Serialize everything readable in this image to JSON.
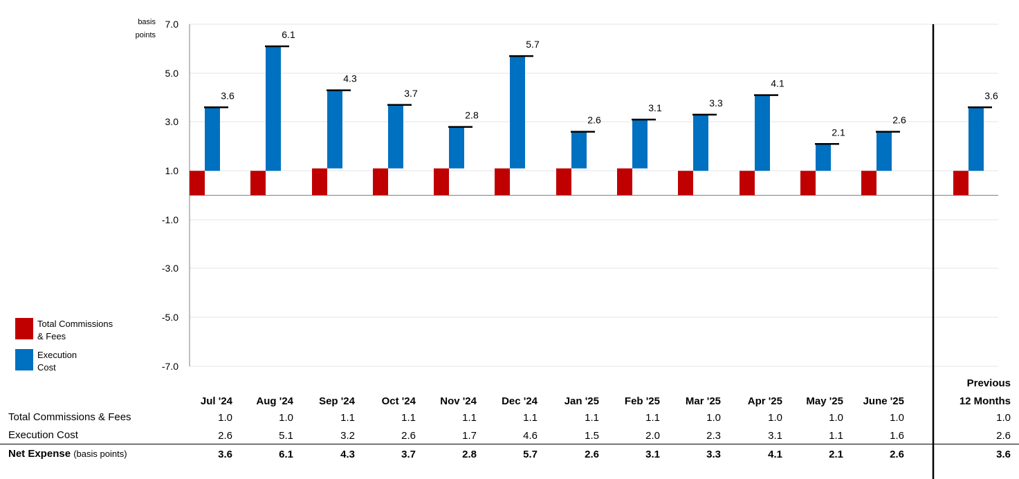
{
  "chart_data": {
    "type": "bar",
    "y_unit_label": "basis\npoints",
    "yticks": [
      "7.0",
      "5.0",
      "3.0",
      "1.0",
      "-1.0",
      "-3.0",
      "-5.0",
      "-7.0"
    ],
    "ylim": [
      -8,
      7
    ],
    "categories": [
      "Jul '24",
      "Aug '24",
      "Sep '24",
      "Oct '24",
      "Nov '24",
      "Dec '24",
      "Jan '25",
      "Feb '25",
      "Mar '25",
      "Apr '25",
      "May '25",
      "June '25"
    ],
    "summary_category": [
      "Previous",
      "12 Months"
    ],
    "series": [
      {
        "name": "Total Commissions & Fees",
        "color": "#c00000",
        "values": [
          1.0,
          1.0,
          1.1,
          1.1,
          1.1,
          1.1,
          1.1,
          1.1,
          1.0,
          1.0,
          1.0,
          1.0
        ],
        "summary_value": 1.0
      },
      {
        "name": "Execution Cost",
        "color": "#0070c0",
        "values": [
          2.6,
          5.1,
          3.2,
          2.6,
          1.7,
          4.6,
          1.5,
          2.0,
          2.3,
          3.1,
          1.1,
          1.6
        ],
        "summary_value": 2.6
      }
    ],
    "totals": {
      "name": "Net Expense",
      "values": [
        3.6,
        6.1,
        4.3,
        3.7,
        2.8,
        5.7,
        2.6,
        3.1,
        3.3,
        4.1,
        2.1,
        2.6
      ],
      "summary_value": 3.6,
      "labels": [
        "3.6",
        "6.1",
        "4.3",
        "3.7",
        "2.8",
        "5.7",
        "2.6",
        "3.1",
        "3.3",
        "4.1",
        "2.1",
        "2.6"
      ],
      "summary_label": "3.6"
    },
    "legend_position": "bottom-left",
    "grid": true
  },
  "legend": {
    "commissions": "Total Commissions\n& Fees",
    "execution": "Execution\nCost"
  },
  "table": {
    "rows": [
      {
        "label": "Total Commissions & Fees",
        "values": [
          "1.0",
          "1.0",
          "1.1",
          "1.1",
          "1.1",
          "1.1",
          "1.1",
          "1.1",
          "1.0",
          "1.0",
          "1.0",
          "1.0"
        ],
        "summary": "1.0"
      },
      {
        "label": "Execution Cost",
        "values": [
          "2.6",
          "5.1",
          "3.2",
          "2.6",
          "1.7",
          "4.6",
          "1.5",
          "2.0",
          "2.3",
          "3.1",
          "1.1",
          "1.6"
        ],
        "summary": "2.6"
      },
      {
        "label": "Net Expense",
        "label_suffix": "(basis points)",
        "values": [
          "3.6",
          "6.1",
          "4.3",
          "3.7",
          "2.8",
          "5.7",
          "2.6",
          "3.1",
          "3.3",
          "4.1",
          "2.1",
          "2.6"
        ],
        "summary": "3.6"
      }
    ]
  }
}
